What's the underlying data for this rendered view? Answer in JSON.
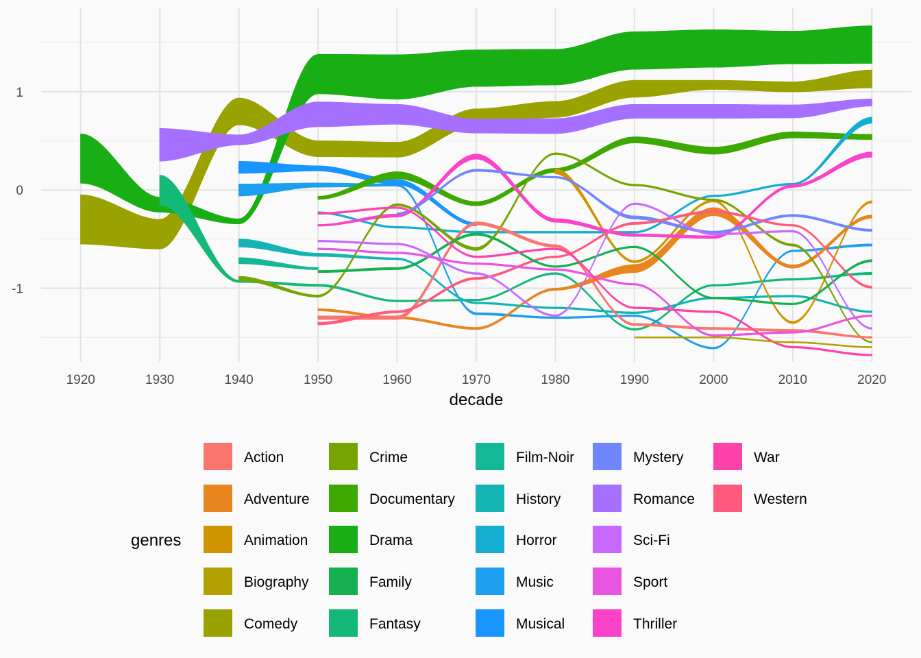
{
  "chart_data": {
    "type": "area",
    "subtype": "bump-stream",
    "xlabel": "decade",
    "ylabel": "",
    "xlim": [
      1915,
      2025
    ],
    "ylim": [
      -1.75,
      1.85
    ],
    "x_ticks": [
      1920,
      1930,
      1940,
      1950,
      1960,
      1970,
      1980,
      1990,
      2000,
      2010,
      2020
    ],
    "y_ticks": [
      -1,
      0,
      1
    ],
    "y_tick_labels": [
      "-1",
      "0",
      "1"
    ],
    "grid": true,
    "legend": {
      "title": "genres",
      "position": "bottom",
      "columns": 5
    },
    "series": [
      {
        "name": "Action",
        "color": "#F8766D",
        "x": [
          1950,
          1960,
          1970,
          1980,
          1990,
          2000,
          2010,
          2020
        ],
        "center": [
          -1.3,
          -1.3,
          -0.34,
          -0.57,
          -1.37,
          -1.41,
          -1.43,
          -1.5
        ],
        "width": [
          0.035,
          0.035,
          0.03,
          0.025,
          0.02,
          0.02,
          0.02,
          0.015
        ]
      },
      {
        "name": "Adventure",
        "color": "#E7851E",
        "x": [
          1950,
          1960,
          1970,
          1980,
          1990,
          2000,
          2010,
          2020
        ],
        "center": [
          -1.22,
          -1.3,
          -1.41,
          -1.01,
          -0.8,
          -0.22,
          -0.78,
          -0.27
        ],
        "width": [
          0.02,
          0.02,
          0.02,
          0.02,
          0.08,
          0.08,
          0.03,
          0.03
        ]
      },
      {
        "name": "Animation",
        "color": "#D09400",
        "x": [
          1980,
          1990,
          2000,
          2010,
          2020
        ],
        "center": [
          0.19,
          -0.73,
          -0.11,
          -1.35,
          -0.12
        ],
        "width": [
          0.05,
          0.02,
          0.02,
          0.02,
          0.02
        ]
      },
      {
        "name": "Biography",
        "color": "#B2A100",
        "x": [
          1990,
          2000,
          2010,
          2020
        ],
        "center": [
          -1.5,
          -1.5,
          -1.55,
          -1.6
        ],
        "width": [
          0.01,
          0.01,
          0.01,
          0.01
        ]
      },
      {
        "name": "Comedy",
        "color": "#9AA200",
        "x": [
          1920,
          1930,
          1940,
          1950,
          1960,
          1970,
          1980,
          1990,
          2000,
          2010,
          2020
        ],
        "center": [
          -0.3,
          -0.45,
          0.8,
          0.42,
          0.41,
          0.74,
          0.82,
          1.03,
          1.07,
          1.05,
          1.13
        ],
        "width": [
          0.5,
          0.3,
          0.27,
          0.16,
          0.15,
          0.17,
          0.16,
          0.17,
          0.09,
          0.1,
          0.18
        ]
      },
      {
        "name": "Crime",
        "color": "#76A400",
        "x": [
          1940,
          1950,
          1960,
          1970,
          1980,
          1990,
          2000,
          2010,
          2020
        ],
        "center": [
          -0.9,
          -1.08,
          -0.15,
          -0.6,
          0.37,
          0.05,
          -0.1,
          -0.56,
          -1.55
        ],
        "width": [
          0.04,
          0.02,
          0.02,
          0.03,
          0.015,
          0.015,
          0.015,
          0.02,
          0.01
        ]
      },
      {
        "name": "Documentary",
        "color": "#3DA800",
        "x": [
          1950,
          1960,
          1970,
          1980,
          1990,
          2000,
          2010,
          2020
        ],
        "center": [
          -0.08,
          0.15,
          -0.14,
          0.2,
          0.51,
          0.4,
          0.56,
          0.54
        ],
        "width": [
          0.03,
          0.07,
          0.04,
          0.04,
          0.06,
          0.07,
          0.06,
          0.05
        ]
      },
      {
        "name": "Drama",
        "color": "#18AE14",
        "x": [
          1920,
          1930,
          1940,
          1950,
          1960,
          1970,
          1980,
          1990,
          2000,
          2010,
          2020
        ],
        "center": [
          0.32,
          -0.15,
          -0.32,
          1.18,
          1.15,
          1.24,
          1.25,
          1.42,
          1.44,
          1.45,
          1.48
        ],
        "width": [
          0.5,
          0.15,
          0.05,
          0.4,
          0.45,
          0.37,
          0.36,
          0.38,
          0.38,
          0.33,
          0.38
        ]
      },
      {
        "name": "Family",
        "color": "#14B14E",
        "x": [
          1950,
          1960,
          1970,
          1980,
          1990,
          2000,
          2010,
          2020
        ],
        "center": [
          -0.83,
          -0.8,
          -0.45,
          -0.78,
          -0.58,
          -1.1,
          -1.16,
          -0.72
        ],
        "width": [
          0.02,
          0.02,
          0.02,
          0.015,
          0.015,
          0.015,
          0.015,
          0.02
        ]
      },
      {
        "name": "Fantasy",
        "color": "#14B877",
        "x": [
          1930,
          1940,
          1950,
          1960,
          1970,
          1980,
          1990,
          2000,
          2010,
          2020
        ],
        "center": [
          0.0,
          -0.93,
          -0.97,
          -1.13,
          -1.12,
          -0.85,
          -1.42,
          -0.97,
          -0.91,
          -0.85
        ],
        "width": [
          0.3,
          0.02,
          0.02,
          0.015,
          0.015,
          0.015,
          0.015,
          0.015,
          0.015,
          0.02
        ]
      },
      {
        "name": "Film-Noir",
        "color": "#14B897",
        "x": [
          1940,
          1950
        ],
        "center": [
          -0.72,
          -0.8
        ],
        "width": [
          0.06,
          0.02
        ]
      },
      {
        "name": "History",
        "color": "#14B4B5",
        "x": [
          1940,
          1950,
          1960,
          1970,
          1980,
          1990,
          2000,
          2010,
          2020
        ],
        "center": [
          -0.54,
          -0.66,
          -0.7,
          -1.15,
          -1.2,
          -1.25,
          -1.1,
          -1.08,
          -1.24
        ],
        "width": [
          0.08,
          0.03,
          0.015,
          0.015,
          0.015,
          0.015,
          0.015,
          0.015,
          0.015
        ]
      },
      {
        "name": "Horror",
        "color": "#14ACD0",
        "x": [
          1950,
          1960,
          1970,
          1980,
          1990,
          2000,
          2010,
          2020
        ],
        "center": [
          -0.23,
          -0.38,
          -0.43,
          -0.43,
          -0.43,
          -0.06,
          0.06,
          0.71
        ],
        "width": [
          0.015,
          0.015,
          0.015,
          0.015,
          0.015,
          0.015,
          0.015,
          0.06
        ]
      },
      {
        "name": "Music",
        "color": "#1D9FEF",
        "x": [
          1940,
          1950,
          1960,
          1970,
          1980,
          1990,
          2000,
          2010,
          2020
        ],
        "center": [
          0.0,
          0.05,
          0.05,
          -1.26,
          -1.3,
          -1.28,
          -1.61,
          -0.62,
          -0.56
        ],
        "width": [
          0.12,
          0.04,
          0.02,
          0.02,
          0.015,
          0.015,
          0.015,
          0.015,
          0.02
        ]
      },
      {
        "name": "Musical",
        "color": "#1895FF",
        "x": [
          1940,
          1950,
          1960,
          1970
        ],
        "center": [
          0.23,
          0.22,
          0.08,
          -0.35
        ],
        "width": [
          0.12,
          0.05,
          0.05,
          0.03
        ]
      },
      {
        "name": "Mystery",
        "color": "#6F86FF",
        "x": [
          1960,
          1970,
          1980,
          1990,
          2000,
          2010,
          2020
        ],
        "center": [
          -0.24,
          0.2,
          0.13,
          -0.28,
          -0.43,
          -0.26,
          -0.41
        ],
        "width": [
          0.015,
          0.02,
          0.015,
          0.03,
          0.02,
          0.02,
          0.02
        ]
      },
      {
        "name": "Romance",
        "color": "#A570FF",
        "x": [
          1930,
          1940,
          1950,
          1960,
          1970,
          1980,
          1990,
          2000,
          2010,
          2020
        ],
        "center": [
          0.46,
          0.51,
          0.77,
          0.77,
          0.65,
          0.65,
          0.8,
          0.8,
          0.8,
          0.89
        ],
        "width": [
          0.33,
          0.1,
          0.25,
          0.2,
          0.14,
          0.15,
          0.14,
          0.14,
          0.13,
          0.07
        ]
      },
      {
        "name": "Sci-Fi",
        "color": "#C86AFF",
        "x": [
          1950,
          1960,
          1970,
          1980,
          1990,
          2000,
          2010,
          2020
        ],
        "center": [
          -0.52,
          -0.55,
          -0.85,
          -1.28,
          -0.14,
          -0.45,
          -0.42,
          -1.41
        ],
        "width": [
          0.015,
          0.015,
          0.015,
          0.015,
          0.015,
          0.015,
          0.015,
          0.015
        ]
      },
      {
        "name": "Sport",
        "color": "#E955E3",
        "x": [
          1950,
          1960,
          1970,
          1980,
          1990,
          2000,
          2010,
          2020
        ],
        "center": [
          -0.6,
          -0.64,
          -0.75,
          -0.81,
          -0.96,
          -1.48,
          -1.45,
          -1.28
        ],
        "width": [
          0.015,
          0.015,
          0.015,
          0.015,
          0.015,
          0.015,
          0.015,
          0.015
        ]
      },
      {
        "name": "Thriller",
        "color": "#FA43C9",
        "x": [
          1950,
          1960,
          1970,
          1980,
          1990,
          2000,
          2010,
          2020
        ],
        "center": [
          -0.36,
          -0.26,
          0.34,
          -0.31,
          -0.46,
          -0.48,
          0.04,
          0.36
        ],
        "width": [
          0.015,
          0.03,
          0.05,
          0.035,
          0.025,
          0.025,
          0.025,
          0.05
        ]
      },
      {
        "name": "War",
        "color": "#FF42AA",
        "x": [
          1950,
          1960,
          1970,
          1980,
          1990,
          2000,
          2010,
          2020
        ],
        "center": [
          -0.24,
          -0.18,
          -0.68,
          -0.6,
          -1.2,
          -1.24,
          -1.6,
          -1.68
        ],
        "width": [
          0.015,
          0.015,
          0.015,
          0.015,
          0.015,
          0.015,
          0.015,
          0.015
        ]
      },
      {
        "name": "Western",
        "color": "#FF5A7D",
        "x": [
          1950,
          1960,
          1970,
          1980,
          1990,
          2000,
          2010,
          2020
        ],
        "center": [
          -1.36,
          -1.24,
          -0.9,
          -0.68,
          -0.34,
          -0.22,
          -0.36,
          -0.99
        ],
        "width": [
          0.025,
          0.02,
          0.02,
          0.015,
          0.02,
          0.02,
          0.015,
          0.02
        ]
      }
    ]
  }
}
